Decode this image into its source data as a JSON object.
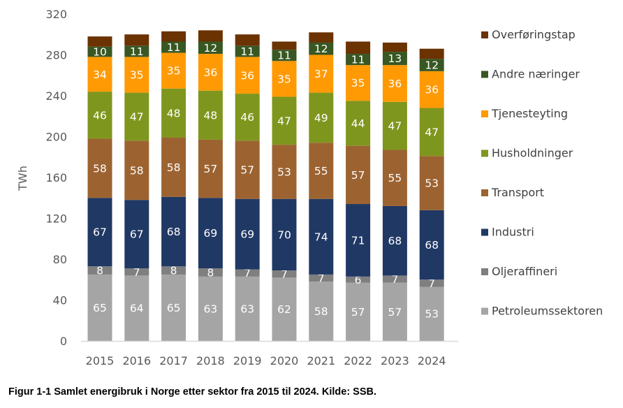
{
  "chart_data": {
    "type": "bar",
    "stacked": true,
    "title": "",
    "xlabel": "",
    "ylabel": "TWh",
    "ylim": [
      0,
      320
    ],
    "yticks": [
      0,
      40,
      80,
      120,
      160,
      200,
      240,
      280,
      320
    ],
    "grid": false,
    "legend_position": "right",
    "categories": [
      "2015",
      "2016",
      "2017",
      "2018",
      "2019",
      "2020",
      "2021",
      "2022",
      "2023",
      "2024"
    ],
    "series": [
      {
        "name": "Petroleumssektoren",
        "color": "#a5a5a5",
        "labeled": true,
        "values": [
          65,
          64,
          65,
          63,
          63,
          62,
          58,
          57,
          57,
          53
        ]
      },
      {
        "name": "Oljeraffineri",
        "color": "#7f7f7f",
        "labeled": true,
        "values": [
          8,
          7,
          8,
          8,
          7,
          7,
          7,
          6,
          7,
          7
        ]
      },
      {
        "name": "Industri",
        "color": "#203864",
        "labeled": true,
        "values": [
          67,
          67,
          68,
          69,
          69,
          70,
          74,
          71,
          68,
          68
        ]
      },
      {
        "name": "Transport",
        "color": "#9c6331",
        "labeled": true,
        "values": [
          58,
          58,
          58,
          57,
          57,
          53,
          55,
          57,
          55,
          53
        ]
      },
      {
        "name": "Husholdninger",
        "color": "#7f961e",
        "labeled": true,
        "values": [
          46,
          47,
          48,
          48,
          46,
          47,
          49,
          44,
          47,
          47
        ]
      },
      {
        "name": "Tjenesteyting",
        "color": "#ff9a05",
        "labeled": true,
        "values": [
          34,
          35,
          35,
          36,
          36,
          35,
          37,
          35,
          36,
          36
        ]
      },
      {
        "name": "Andre næringer",
        "color": "#385723",
        "labeled": true,
        "values": [
          10,
          11,
          11,
          12,
          11,
          11,
          12,
          11,
          13,
          12
        ]
      },
      {
        "name": "Overføringstap",
        "color": "#6b3202",
        "labeled": false,
        "values": [
          10,
          11,
          10,
          11,
          11,
          8,
          10,
          12,
          9,
          10
        ]
      }
    ]
  },
  "caption": "Figur 1-1 Samlet energibruk i Norge etter sektor fra 2015 til 2024. Kilde: SSB."
}
